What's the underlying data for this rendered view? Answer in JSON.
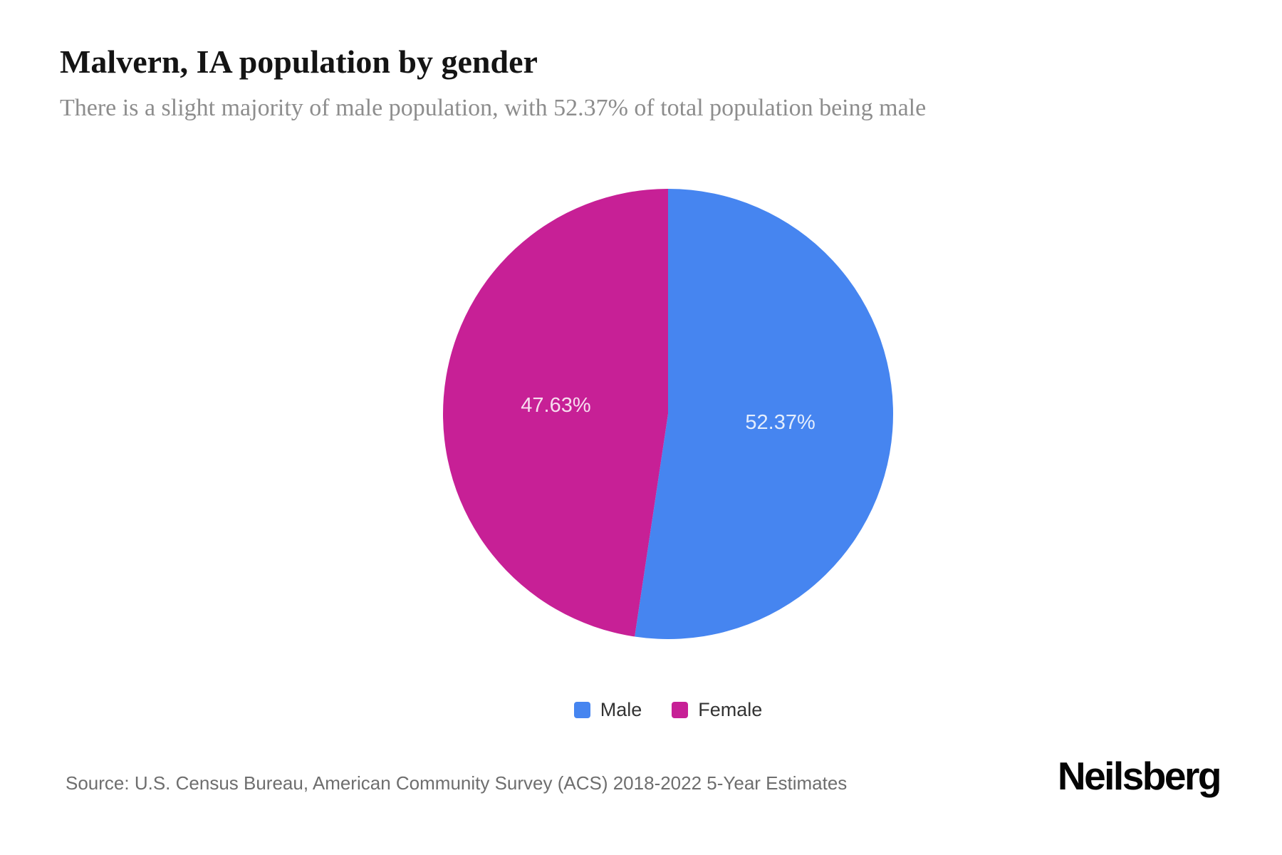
{
  "header": {
    "title": "Malvern, IA population by gender",
    "subtitle": "There is a slight majority of male population, with 52.37% of total population being male"
  },
  "chart_data": {
    "type": "pie",
    "title": "Malvern, IA population by gender",
    "subtitle": "There is a slight majority of male population, with 52.37% of total population being male",
    "series": [
      {
        "name": "Male",
        "value": 52.37,
        "label": "52.37%",
        "color": "#4685F0"
      },
      {
        "name": "Female",
        "value": 47.63,
        "label": "47.63%",
        "color": "#C72096"
      }
    ],
    "start_angle_deg": 0,
    "direction": "clockwise",
    "legend_position": "bottom",
    "slice_label_color": "rgba(255,255,255,0.85)",
    "label_distance_ratio": 0.5
  },
  "footer": {
    "source": "Source: U.S. Census Bureau, American Community Survey (ACS) 2018-2022 5-Year Estimates",
    "brand": "Neilsberg"
  }
}
